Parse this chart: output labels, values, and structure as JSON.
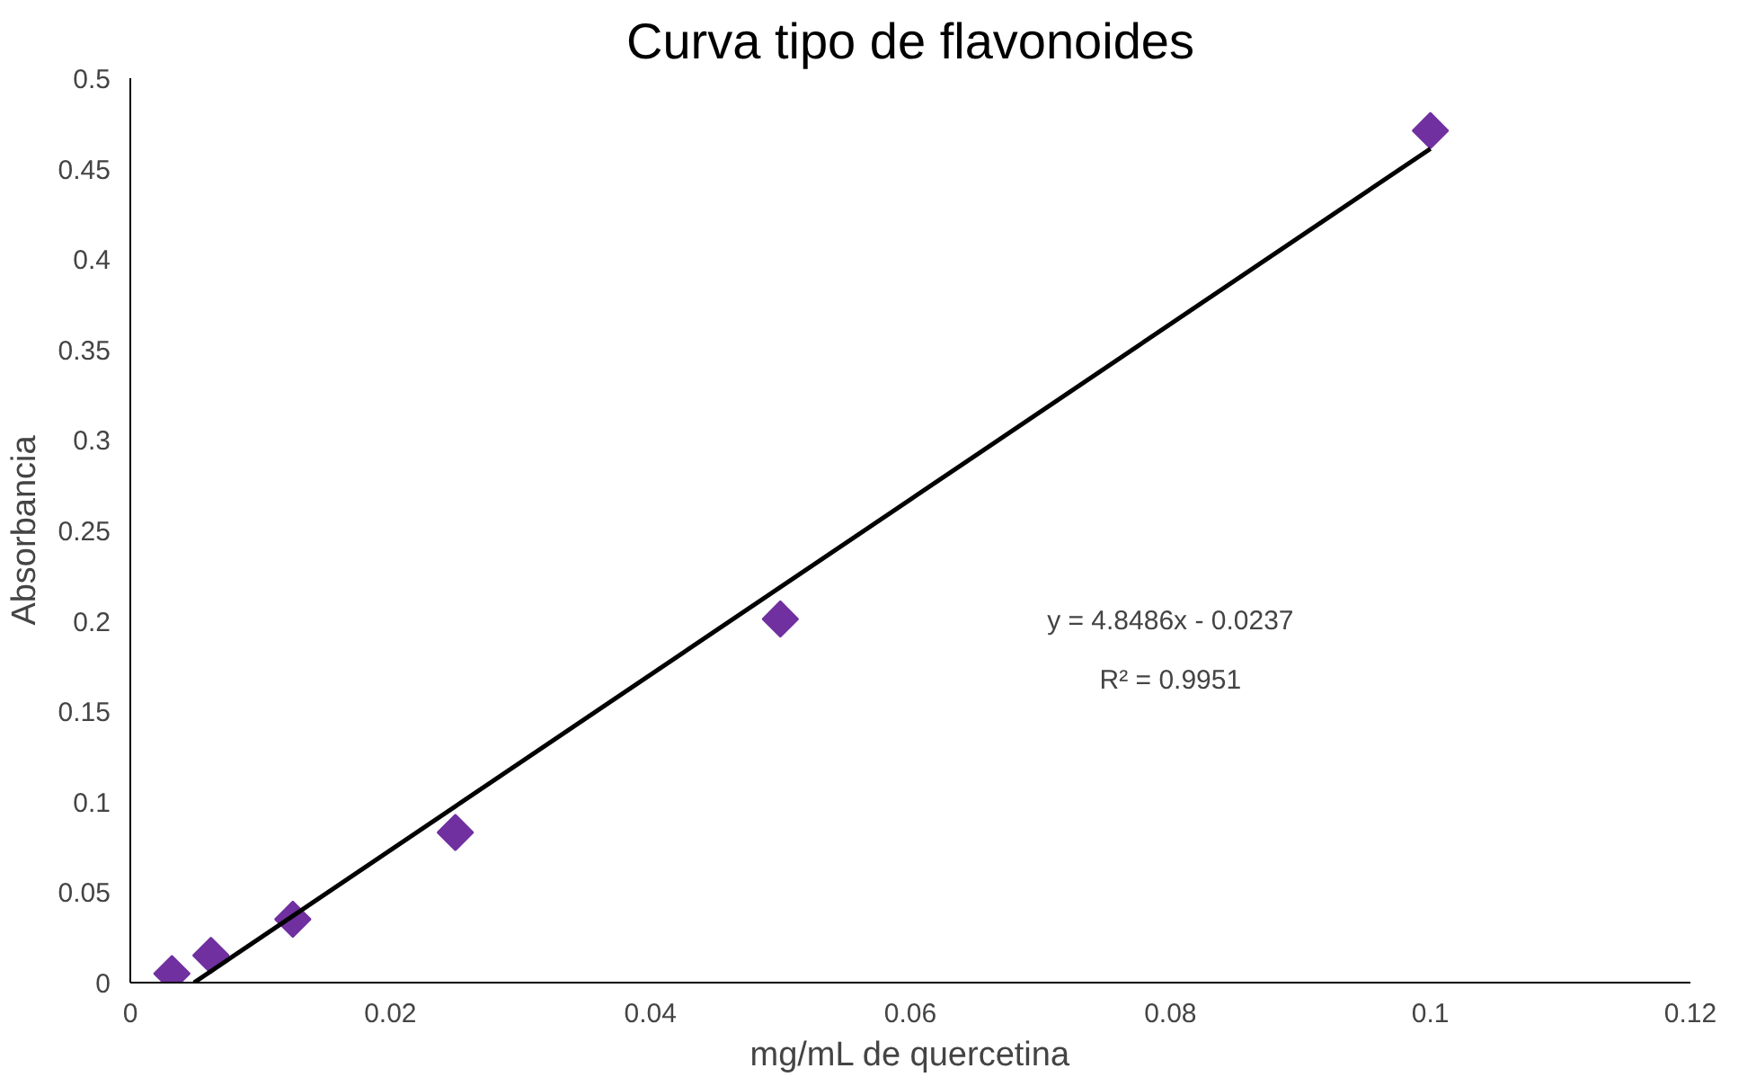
{
  "chart_data": {
    "type": "scatter",
    "title": "Curva tipo de flavonoides",
    "xlabel": "mg/mL de quercetina",
    "ylabel": "Absorbancia",
    "xlim": [
      0,
      0.12
    ],
    "xticks": [
      0,
      0.02,
      0.04,
      0.06,
      0.08,
      0.1,
      0.12
    ],
    "ylim": [
      0,
      0.5
    ],
    "yticks": [
      0,
      0.05,
      0.1,
      0.15,
      0.2,
      0.25,
      0.3,
      0.35,
      0.4,
      0.45,
      0.5
    ],
    "grid": false,
    "series": [
      {
        "marker": "diamond",
        "color": "#7030a0",
        "x": [
          0.0032,
          0.0062,
          0.0125,
          0.025,
          0.05,
          0.1
        ],
        "values": [
          0.005,
          0.015,
          0.035,
          0.083,
          0.201,
          0.471
        ]
      },
      {
        "type": "line",
        "color": "#000000",
        "x": [
          0.0049,
          0.1
        ],
        "values": [
          0,
          0.461
        ]
      }
    ],
    "annotations": [
      "y = 4.8486x - 0.0237",
      "R² = 0.9951"
    ]
  }
}
